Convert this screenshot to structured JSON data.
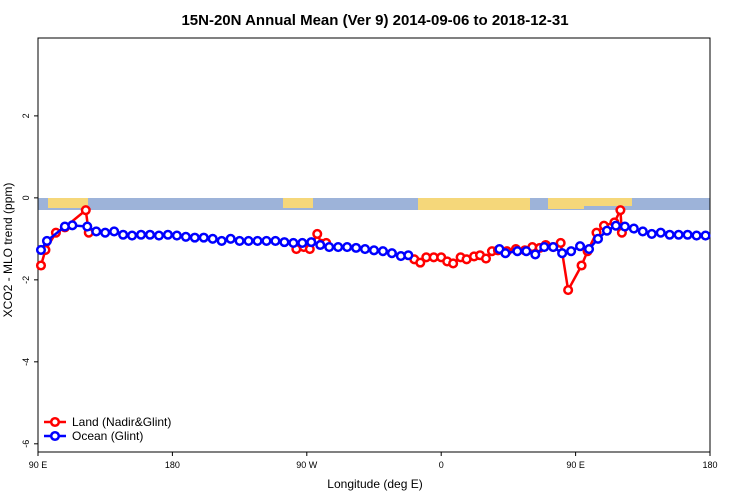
{
  "chart_data": {
    "type": "line",
    "title": "15N-20N Annual Mean (Ver 9)   2014-09-06 to 2018-12-31",
    "x_label": "Longitude (deg E)",
    "y_label": "XCO2 - MLO trend (ppm)",
    "xlim": [
      90,
      540
    ],
    "ylim": [
      -6.2,
      3.9
    ],
    "xticks": [
      {
        "value": 90,
        "label": "90 E"
      },
      180,
      {
        "value": 270,
        "label": "90 W"
      },
      {
        "value": 360,
        "label": "0"
      },
      {
        "value": 450,
        "label": "90 E"
      },
      {
        "value": 540,
        "label": "180"
      }
    ],
    "yticks": [
      -6,
      -4,
      -2,
      0,
      2
    ],
    "legend": "bottom-left",
    "series": [
      {
        "name": "Land (Nadir&Glint)",
        "color": "#ff0000",
        "x": [
          92,
          95,
          102,
          108,
          122,
          124,
          200,
          263,
          268,
          272,
          277,
          280,
          283,
          310,
          342,
          346,
          350,
          355,
          360,
          364,
          368,
          373,
          377,
          382,
          386,
          390,
          394,
          398,
          404,
          410,
          416,
          421,
          426,
          430,
          435,
          440,
          445,
          454,
          458,
          464,
          469,
          476,
          480,
          481
        ],
        "values": [
          -1.65,
          -1.27,
          -0.85,
          -0.72,
          -0.3,
          -0.85,
          null,
          -1.25,
          -1.2,
          -1.25,
          -0.88,
          -1.12,
          -1.1,
          null,
          -1.5,
          -1.58,
          -1.45,
          -1.45,
          -1.45,
          -1.55,
          -1.6,
          -1.45,
          -1.5,
          -1.43,
          -1.4,
          -1.48,
          -1.3,
          -1.28,
          -1.3,
          -1.25,
          -1.28,
          -1.2,
          -1.22,
          -1.15,
          -1.2,
          -1.1,
          -2.25,
          -1.65,
          -1.3,
          -0.85,
          -0.68,
          -0.6,
          -0.3,
          -0.85
        ]
      },
      {
        "name": "Ocean (Glint)",
        "color": "#0000ff",
        "x": [
          92,
          96,
          108,
          113,
          123,
          129,
          135,
          141,
          147,
          153,
          159,
          165,
          171,
          177,
          183,
          189,
          195,
          201,
          207,
          213,
          219,
          225,
          231,
          237,
          243,
          249,
          255,
          261,
          267,
          273,
          279,
          285,
          291,
          297,
          303,
          309,
          315,
          321,
          327,
          333,
          338,
          370,
          399,
          403,
          411,
          417,
          423,
          429,
          435,
          441,
          447,
          453,
          459,
          465,
          471,
          477,
          483,
          489,
          495,
          501,
          507,
          513,
          519,
          525,
          531,
          537
        ],
        "values": [
          -1.27,
          -1.05,
          -0.7,
          -0.67,
          -0.7,
          -0.82,
          -0.85,
          -0.82,
          -0.9,
          -0.92,
          -0.9,
          -0.9,
          -0.92,
          -0.9,
          -0.92,
          -0.95,
          -0.97,
          -0.97,
          -1.0,
          -1.05,
          -1.0,
          -1.05,
          -1.05,
          -1.05,
          -1.05,
          -1.05,
          -1.08,
          -1.1,
          -1.1,
          -1.08,
          -1.15,
          -1.2,
          -1.2,
          -1.2,
          -1.22,
          -1.25,
          -1.28,
          -1.3,
          -1.35,
          -1.42,
          -1.4,
          null,
          -1.25,
          -1.35,
          -1.3,
          -1.3,
          -1.38,
          -1.2,
          -1.2,
          -1.35,
          -1.3,
          -1.18,
          -1.25,
          -1.0,
          -0.8,
          -0.68,
          -0.7,
          -0.75,
          -0.82,
          -0.88,
          -0.85,
          -0.9,
          -0.9,
          -0.9,
          -0.92,
          -0.92
        ]
      }
    ]
  }
}
